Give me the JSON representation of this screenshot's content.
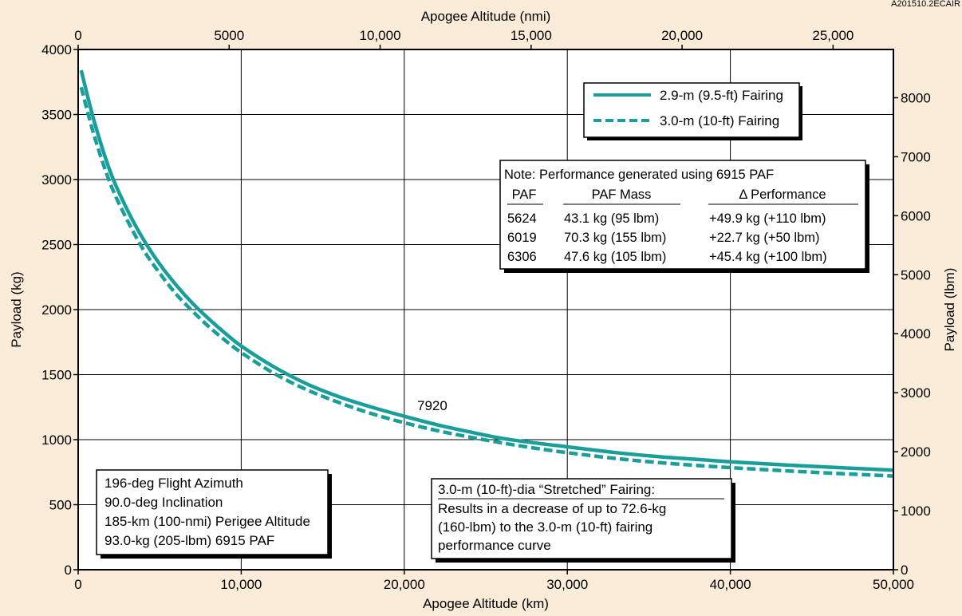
{
  "corner_code": "A201510.2ECAIR",
  "colors": {
    "background": "#fbecd9",
    "curve": "#1a9e9a",
    "grid": "#000000"
  },
  "chart_data": {
    "type": "line",
    "xlabel": "Apogee Altitude (km)",
    "x2label": "Apogee Altitude (nmi)",
    "ylabel": "Payload (kg)",
    "y2label": "Payload (lbm)",
    "xlim": [
      0,
      50000
    ],
    "ylim": [
      0,
      4000
    ],
    "x2lim": [
      0,
      26998
    ],
    "y2lim": [
      0,
      8818
    ],
    "grid": true,
    "legend_position": "top-right",
    "x_ticks": [
      "0",
      "10,000",
      "20,000",
      "30,000",
      "40,000",
      "50,000"
    ],
    "x2_ticks": [
      "0",
      "5000",
      "10,000",
      "15,000",
      "20,000",
      "25,000"
    ],
    "y_ticks": [
      "0",
      "500",
      "1000",
      "1500",
      "2000",
      "2500",
      "3000",
      "3500",
      "4000"
    ],
    "y2_ticks": [
      "0",
      "1000",
      "2000",
      "3000",
      "4000",
      "5000",
      "6000",
      "7000",
      "8000"
    ],
    "series": [
      {
        "name": "2.9-m (9.5-ft) Fairing",
        "style": "solid",
        "x": [
          185,
          1000,
          2000,
          3000,
          4000,
          5000,
          6000,
          7000,
          8000,
          9000,
          10000,
          12000,
          14000,
          16000,
          18000,
          20000,
          22000,
          24000,
          26000,
          28000,
          30000,
          33000,
          36000,
          40000,
          45000,
          50000
        ],
        "values": [
          3840,
          3440,
          3050,
          2770,
          2540,
          2350,
          2190,
          2050,
          1930,
          1820,
          1720,
          1560,
          1430,
          1330,
          1250,
          1180,
          1115,
          1060,
          1010,
          975,
          945,
          900,
          865,
          830,
          795,
          765
        ]
      },
      {
        "name": "3.0-m (10-ft) Fairing",
        "style": "dashed",
        "x": [
          185,
          1000,
          2000,
          3000,
          4000,
          5000,
          6000,
          7000,
          8000,
          9000,
          10000,
          12000,
          14000,
          16000,
          18000,
          20000,
          22000,
          24000,
          26000,
          28000,
          30000,
          33000,
          36000,
          40000,
          45000,
          50000
        ],
        "values": [
          3710,
          3330,
          2960,
          2690,
          2460,
          2280,
          2120,
          1990,
          1870,
          1765,
          1670,
          1510,
          1385,
          1285,
          1200,
          1130,
          1070,
          1020,
          975,
          935,
          900,
          855,
          820,
          785,
          750,
          720
        ]
      }
    ],
    "annotations": [
      "7920"
    ]
  },
  "note_box": {
    "title": "Note: Performance generated using 6915 PAF",
    "headers": [
      "PAF",
      "PAF Mass",
      "Δ Performance"
    ],
    "rows": [
      [
        "5624",
        "43.1 kg (95 lbm)",
        "+49.9 kg (+110 lbm)"
      ],
      [
        "6019",
        "70.3 kg (155 lbm)",
        "+22.7 kg (+50 lbm)"
      ],
      [
        "6306",
        "47.6 kg (105 lbm)",
        "+45.4 kg (+100 lbm)"
      ]
    ]
  },
  "conditions_box": {
    "lines": [
      "196-deg Flight Azimuth",
      "90.0-deg Inclination",
      "185-km (100-nmi) Perigee Altitude",
      "93.0-kg (205-lbm) 6915 PAF"
    ]
  },
  "fairing_box": {
    "title": "3.0-m (10-ft)-dia “Stretched” Fairing:",
    "lines": [
      "Results in a decrease of up to 72.6-kg",
      "(160-lbm) to the 3.0-m (10-ft) fairing",
      "performance curve"
    ]
  }
}
